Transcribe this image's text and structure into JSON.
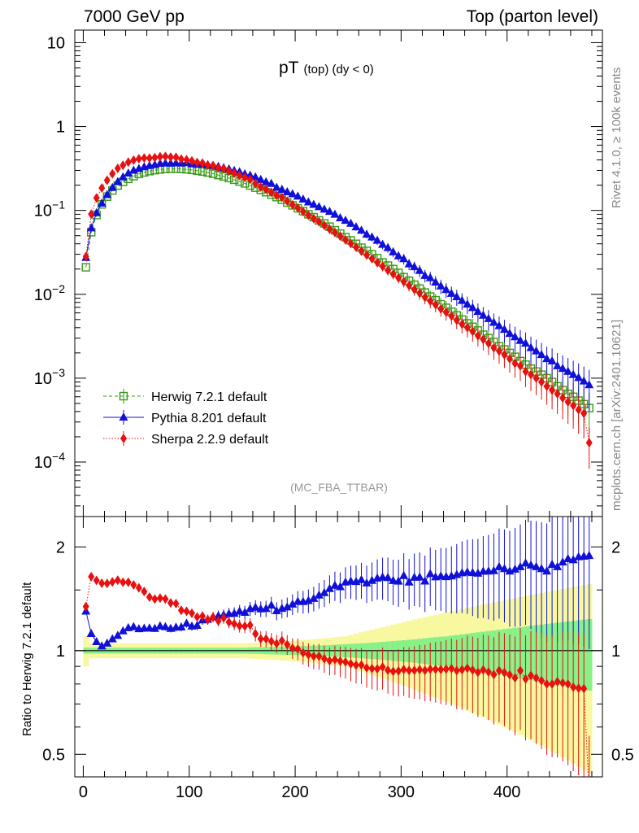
{
  "header": {
    "left": "7000 GeV pp",
    "right": "Top (parton level)"
  },
  "side_labels": {
    "rivet": "Rivet 4.1.0, ≥ 100k events",
    "mcplots": "mcplots.cern.ch [arXiv:2401.10621]"
  },
  "chart_data": [
    {
      "type": "line",
      "title": "pT (top) (dy < 0)",
      "title_main": "pT",
      "title_sub": "(top)  (dy < 0)",
      "analysis_tag": "(MC_FBA_TTBAR)",
      "xlabel": "",
      "ylabel": "",
      "xlim": [
        -8,
        490
      ],
      "ylim_log10": [
        -4.65,
        1.15
      ],
      "yscale": "log",
      "y_tick_labels": [
        {
          "base": "10",
          "exp": "",
          "text": "10"
        },
        {
          "base": "1",
          "exp": "",
          "text": "1"
        },
        {
          "base": "10",
          "exp": "−1",
          "text": "10^-1"
        },
        {
          "base": "10",
          "exp": "−2",
          "text": "10^-2"
        },
        {
          "base": "10",
          "exp": "−3",
          "text": "10^-3"
        },
        {
          "base": "10",
          "exp": "−4",
          "text": "10^-4"
        }
      ],
      "x": [
        2.5,
        7.5,
        12.5,
        17.5,
        22.5,
        27.5,
        32.5,
        37.5,
        42.5,
        47.5,
        52.5,
        57.5,
        62.5,
        67.5,
        72.5,
        77.5,
        82.5,
        87.5,
        92.5,
        97.5,
        102.5,
        107.5,
        112.5,
        117.5,
        122.5,
        127.5,
        132.5,
        137.5,
        142.5,
        147.5,
        152.5,
        157.5,
        162.5,
        167.5,
        172.5,
        177.5,
        182.5,
        187.5,
        192.5,
        197.5,
        202.5,
        207.5,
        212.5,
        217.5,
        222.5,
        227.5,
        232.5,
        237.5,
        242.5,
        247.5,
        252.5,
        257.5,
        262.5,
        267.5,
        272.5,
        277.5,
        282.5,
        287.5,
        292.5,
        297.5,
        302.5,
        307.5,
        312.5,
        317.5,
        322.5,
        327.5,
        332.5,
        337.5,
        342.5,
        347.5,
        352.5,
        357.5,
        362.5,
        367.5,
        372.5,
        377.5,
        382.5,
        387.5,
        392.5,
        397.5,
        402.5,
        407.5,
        412.5,
        417.5,
        422.5,
        427.5,
        432.5,
        437.5,
        442.5,
        447.5,
        452.5,
        457.5,
        462.5,
        467.5,
        472.5,
        477.5
      ],
      "series": [
        {
          "name": "Herwig 7.2.1 default",
          "color": "#3a9a1a",
          "marker": "open-square",
          "line": "dashed",
          "values": [
            0.021,
            0.055,
            0.088,
            0.118,
            0.146,
            0.173,
            0.198,
            0.219,
            0.238,
            0.256,
            0.272,
            0.284,
            0.294,
            0.302,
            0.308,
            0.312,
            0.314,
            0.314,
            0.312,
            0.309,
            0.304,
            0.298,
            0.291,
            0.283,
            0.274,
            0.264,
            0.254,
            0.243,
            0.232,
            0.221,
            0.21,
            0.198,
            0.187,
            0.176,
            0.165,
            0.154,
            0.144,
            0.134,
            0.124,
            0.115,
            0.106,
            0.098,
            0.09,
            0.083,
            0.076,
            0.07,
            0.064,
            0.058,
            0.053,
            0.048,
            0.044,
            0.04,
            0.036,
            0.033,
            0.03,
            0.027,
            0.024,
            0.022,
            0.02,
            0.018,
            0.016,
            0.0145,
            0.013,
            0.0117,
            0.0105,
            0.0094,
            0.0085,
            0.0076,
            0.0069,
            0.0062,
            0.0056,
            0.005,
            0.0045,
            0.0041,
            0.0037,
            0.0033,
            0.003,
            0.0027,
            0.0024,
            0.0022,
            0.002,
            0.0018,
            0.0016,
            0.00145,
            0.0013,
            0.0012,
            0.0011,
            0.001,
            0.0009,
            0.0008,
            0.00072,
            0.00065,
            0.0006,
            0.00054,
            0.00049,
            0.00044
          ]
        },
        {
          "name": "Pythia 8.201 default",
          "color": "#1010d8",
          "marker": "filled-triangle",
          "line": "solid",
          "values": [
            0.0273,
            0.0616,
            0.0933,
            0.1215,
            0.1533,
            0.1868,
            0.2188,
            0.2496,
            0.277,
            0.3,
            0.3145,
            0.3294,
            0.3414,
            0.3498,
            0.3628,
            0.3657,
            0.3638,
            0.3666,
            0.3649,
            0.3707,
            0.3577,
            0.3522,
            0.3569,
            0.3485,
            0.3428,
            0.333,
            0.3223,
            0.3107,
            0.2974,
            0.2874,
            0.2709,
            0.2618,
            0.2495,
            0.2323,
            0.2184,
            0.2085,
            0.1877,
            0.1775,
            0.1658,
            0.1567,
            0.1471,
            0.1358,
            0.1256,
            0.1175,
            0.11,
            0.103,
            0.0968,
            0.0896,
            0.0811,
            0.0758,
            0.0699,
            0.0634,
            0.0578,
            0.0518,
            0.0479,
            0.0438,
            0.0392,
            0.0358,
            0.0319,
            0.0286,
            0.0264,
            0.0229,
            0.0212,
            0.0191,
            0.0167,
            0.0157,
            0.0139,
            0.0125,
            0.0113,
            0.0102,
            0.0093,
            0.0084,
            0.0076,
            0.0069,
            0.0062,
            0.0056,
            0.0051,
            0.0046,
            0.0042,
            0.0038,
            0.0034,
            0.0031,
            0.0028,
            0.0026,
            0.0023,
            0.0021,
            0.0019,
            0.0017,
            0.0016,
            0.0014,
            0.0013,
            0.0012,
            0.0011,
            0.00101,
            0.00092,
            0.00083
          ]
        },
        {
          "name": "Sherpa 2.2.9 default",
          "color": "#e81010",
          "marker": "filled-diamond",
          "line": "dotted",
          "values": [
            0.0282,
            0.0902,
            0.1407,
            0.1851,
            0.2287,
            0.2738,
            0.3169,
            0.3459,
            0.3759,
            0.3971,
            0.4138,
            0.4216,
            0.4204,
            0.4264,
            0.4375,
            0.4405,
            0.4321,
            0.4298,
            0.4085,
            0.4018,
            0.3902,
            0.3731,
            0.3665,
            0.3478,
            0.3428,
            0.3219,
            0.3159,
            0.2939,
            0.2775,
            0.2607,
            0.2472,
            0.2348,
            0.2093,
            0.1903,
            0.1783,
            0.1639,
            0.1509,
            0.1433,
            0.1291,
            0.1168,
            0.1071,
            0.0966,
            0.0876,
            0.0799,
            0.0732,
            0.0663,
            0.0598,
            0.0546,
            0.0494,
            0.0445,
            0.0403,
            0.0363,
            0.0327,
            0.0294,
            0.0266,
            0.0239,
            0.0215,
            0.0193,
            0.0174,
            0.0157,
            0.0141,
            0.0127,
            0.0114,
            0.0103,
            0.0092,
            0.0083,
            0.0075,
            0.0067,
            0.0061,
            0.0055,
            0.0049,
            0.0044,
            0.004,
            0.0036,
            0.0032,
            0.0029,
            0.0026,
            0.0023,
            0.0021,
            0.0019,
            0.0017,
            0.0015,
            0.0014,
            0.0012,
            0.0011,
            0.001,
            0.0009,
            0.0008,
            0.00072,
            0.00065,
            0.00058,
            0.00052,
            0.00047,
            0.00042,
            0.00038,
            0.00017
          ]
        }
      ]
    },
    {
      "type": "line",
      "title": "Ratio to Herwig 7.2.1 default",
      "ylabel": "Ratio to Herwig 7.2.1 default",
      "yscale": "log",
      "ylim": [
        0.43,
        2.45
      ],
      "y_tick_labels": [
        "2",
        "1",
        "0.5"
      ],
      "y_ticks": [
        2,
        1,
        0.5
      ],
      "x_tick_labels": [
        "0",
        "100",
        "200",
        "300",
        "400"
      ],
      "x_ticks": [
        0,
        100,
        200,
        300,
        400
      ],
      "reference": 1,
      "bands": {
        "inner_color": "#88f088",
        "outer_color": "#f8f8a0",
        "inner_halfwidth": [
          0.02,
          0.02,
          0.02,
          0.02,
          0.02,
          0.02,
          0.02,
          0.02,
          0.02,
          0.02,
          0.02,
          0.02,
          0.02,
          0.02,
          0.02,
          0.02,
          0.02,
          0.02,
          0.02,
          0.02,
          0.02,
          0.02,
          0.02,
          0.02,
          0.02,
          0.02,
          0.02,
          0.02,
          0.02,
          0.02,
          0.02,
          0.022,
          0.022,
          0.023,
          0.024,
          0.025,
          0.026,
          0.027,
          0.028,
          0.029,
          0.03,
          0.031,
          0.032,
          0.034,
          0.035,
          0.037,
          0.038,
          0.04,
          0.042,
          0.044,
          0.046,
          0.048,
          0.05,
          0.052,
          0.055,
          0.057,
          0.06,
          0.063,
          0.066,
          0.069,
          0.072,
          0.075,
          0.078,
          0.082,
          0.086,
          0.09,
          0.094,
          0.098,
          0.1,
          0.105,
          0.11,
          0.115,
          0.12,
          0.125,
          0.13,
          0.135,
          0.14,
          0.145,
          0.15,
          0.155,
          0.16,
          0.165,
          0.17,
          0.175,
          0.18,
          0.185,
          0.19,
          0.195,
          0.2,
          0.205,
          0.21,
          0.215,
          0.22,
          0.225,
          0.23,
          0.235
        ],
        "outer_halfwidth": [
          0.1,
          0.05,
          0.05,
          0.05,
          0.05,
          0.05,
          0.05,
          0.05,
          0.05,
          0.05,
          0.05,
          0.05,
          0.05,
          0.05,
          0.05,
          0.05,
          0.05,
          0.05,
          0.05,
          0.05,
          0.05,
          0.05,
          0.05,
          0.05,
          0.05,
          0.05,
          0.05,
          0.05,
          0.05,
          0.05,
          0.05,
          0.052,
          0.054,
          0.056,
          0.058,
          0.06,
          0.062,
          0.064,
          0.066,
          0.068,
          0.07,
          0.073,
          0.076,
          0.079,
          0.082,
          0.086,
          0.09,
          0.094,
          0.098,
          0.1,
          0.11,
          0.12,
          0.13,
          0.14,
          0.15,
          0.16,
          0.17,
          0.18,
          0.19,
          0.2,
          0.21,
          0.22,
          0.23,
          0.24,
          0.25,
          0.26,
          0.27,
          0.28,
          0.29,
          0.3,
          0.31,
          0.32,
          0.33,
          0.34,
          0.35,
          0.36,
          0.37,
          0.38,
          0.39,
          0.4,
          0.41,
          0.42,
          0.43,
          0.44,
          0.45,
          0.46,
          0.47,
          0.48,
          0.49,
          0.5,
          0.51,
          0.52,
          0.53,
          0.54,
          0.55,
          0.56
        ]
      }
    }
  ]
}
